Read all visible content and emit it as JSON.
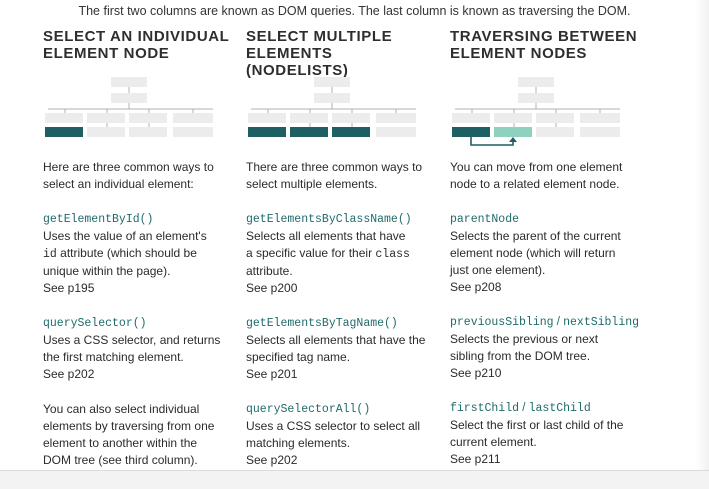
{
  "intro": "The first two columns are known as DOM queries. The last column is known as traversing the DOM.",
  "columns": [
    {
      "heading_line1": "SELECT AN INDIVIDUAL",
      "heading_line2": "ELEMENT NODE",
      "desc_line1": "Here are three common ways to",
      "desc_line2": "select an individual element:",
      "entries": [
        {
          "method": "getElementById()",
          "line1_pre": "Uses the value of an element's",
          "line2_code": "id",
          "line2_post": " attribute (which should be",
          "line3": "unique within the page).",
          "see": "See p195"
        },
        {
          "method": "querySelector()",
          "line1": "Uses a CSS selector, and returns",
          "line2": "the first matching element.",
          "see": "See p202"
        }
      ],
      "note_line1": "You can also select individual",
      "note_line2": "elements by traversing from one",
      "note_line3": "element to another within the",
      "note_line4": "DOM tree (see third column)."
    },
    {
      "heading_line1": "SELECT MULTIPLE",
      "heading_line2": "ELEMENTS (NODELISTS)",
      "desc_line1": "There are three common ways to",
      "desc_line2": "select multiple elements.",
      "entries": [
        {
          "method": "getElementsByClassName()",
          "line1": "Selects all elements that have",
          "line2_pre": "a specific value for their ",
          "line2_code": "class",
          "line3": "attribute.",
          "see": "See p200"
        },
        {
          "method": "getElementsByTagName()",
          "line1": "Selects all elements that have the",
          "line2": "specified tag name.",
          "see": "See p201"
        },
        {
          "method": "querySelectorAll()",
          "line1": "Uses a CSS selector to select all",
          "line2": "matching elements.",
          "see": "See p202"
        }
      ]
    },
    {
      "heading_line1": "TRAVERSING BETWEEN",
      "heading_line2": "ELEMENT NODES",
      "desc_line1": "You can move from one element",
      "desc_line2": "node to a related element node.",
      "entries": [
        {
          "method": "parentNode",
          "line1": "Selects the parent of the current",
          "line2": "element node (which will return",
          "line3": "just one element).",
          "see": "See p208"
        },
        {
          "method_a": "previousSibling",
          "method_sep": " / ",
          "method_b": "nextSibling",
          "line1": "Selects the previous or next",
          "line2": "sibling from the DOM tree.",
          "see": "See p210"
        },
        {
          "method_a": "firstChild",
          "method_sep": " / ",
          "method_b": "lastChild",
          "line1": "Select the first or last child of the",
          "line2": "current element.",
          "see": "See p211"
        }
      ]
    }
  ],
  "colors": {
    "highlight": "#1e5f63",
    "highlight_light": "#8fd0bf",
    "node_faded": "#e9e9e9",
    "line": "#9a9a9a"
  }
}
